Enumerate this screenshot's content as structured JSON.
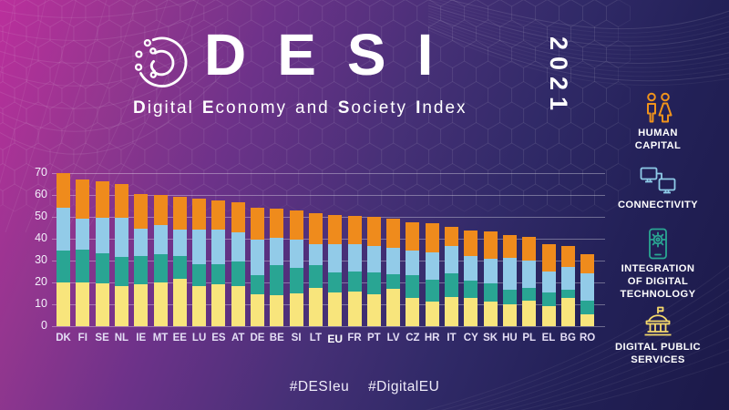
{
  "theme": {
    "bg_gradient_start": "#bb2f9c",
    "bg_gradient_end": "#1b1948",
    "gridline_color": "rgba(255,255,255,0.34)",
    "text_color": "#ffffff"
  },
  "header": {
    "title": "DESI",
    "year": "2021",
    "subtitle_parts": {
      "d1": "D",
      "d2": "igital",
      "e1": "E",
      "e2": "conomy",
      "and": "and",
      "s1": "S",
      "s2": "ociety",
      "i1": "I",
      "i2": "ndex"
    }
  },
  "sidebar": {
    "items": [
      {
        "icon": "people-icon",
        "color": "#f0931b",
        "line1": "HUMAN",
        "line2": "CAPITAL"
      },
      {
        "icon": "monitors-icon",
        "color": "#8ecbe8",
        "line1": "CONNECTIVITY"
      },
      {
        "icon": "phone-gear-icon",
        "color": "#2aa793",
        "line1": "INTEGRATION",
        "line2": "OF DIGITAL",
        "line3": "TECHNOLOGY"
      },
      {
        "icon": "government-building-icon",
        "color": "#f5d96b",
        "line1": "DIGITAL PUBLIC",
        "line2": "SERVICES"
      }
    ]
  },
  "footer": {
    "hashtag1": "#DESIeu",
    "hashtag2": "#DigitalEU"
  },
  "chart_data": {
    "type": "bar",
    "stacked": true,
    "title": "",
    "xlabel": "",
    "ylabel": "",
    "ylim": [
      0,
      70
    ],
    "yticks": [
      0,
      10,
      20,
      30,
      40,
      50,
      60,
      70
    ],
    "grid": "horizontal",
    "legend_position": "right-sidebar",
    "stack_order": "series listed bottom to top",
    "highlight_category": "EU",
    "categories": [
      "DK",
      "FI",
      "SE",
      "NL",
      "IE",
      "MT",
      "EE",
      "LU",
      "ES",
      "AT",
      "DE",
      "BE",
      "SI",
      "LT",
      "EU",
      "FR",
      "PT",
      "LV",
      "CZ",
      "HR",
      "IT",
      "CY",
      "SK",
      "HU",
      "PL",
      "EL",
      "BG",
      "RO"
    ],
    "series": [
      {
        "name": "Digital Public Services",
        "color": "#f8e57c",
        "values": [
          20.0,
          20.0,
          19.5,
          18.5,
          19.0,
          19.8,
          21.5,
          18.3,
          19.0,
          18.3,
          14.5,
          14.3,
          15.0,
          17.3,
          15.3,
          16.0,
          14.6,
          17.2,
          13.0,
          11.2,
          13.5,
          12.8,
          11.1,
          10.2,
          11.8,
          9.0,
          13.0,
          5.3
        ]
      },
      {
        "name": "Integration of Digital Technology",
        "color": "#29a593",
        "values": [
          14.5,
          15.0,
          14.0,
          13.0,
          13.0,
          13.2,
          10.5,
          10.0,
          9.5,
          11.2,
          9.0,
          13.7,
          11.5,
          10.7,
          9.4,
          9.0,
          10.0,
          6.7,
          10.5,
          10.2,
          10.5,
          8.1,
          8.3,
          6.3,
          5.5,
          6.5,
          3.6,
          6.3
        ]
      },
      {
        "name": "Connectivity",
        "color": "#92cbe8",
        "values": [
          19.5,
          14.0,
          16.0,
          18.0,
          12.5,
          13.3,
          12.0,
          15.7,
          15.5,
          13.5,
          16.0,
          12.5,
          13.0,
          9.5,
          12.8,
          12.6,
          11.9,
          12.1,
          10.9,
          12.4,
          12.5,
          11.2,
          11.3,
          14.7,
          12.5,
          9.3,
          10.3,
          12.4
        ]
      },
      {
        "name": "Human Capital",
        "color": "#ef8b1c",
        "values": [
          16.0,
          18.1,
          16.6,
          15.6,
          15.8,
          13.5,
          15.2,
          14.3,
          13.4,
          13.8,
          14.6,
          13.2,
          13.3,
          14.3,
          13.2,
          13.0,
          13.3,
          13.0,
          13.0,
          13.3,
          9.0,
          11.7,
          12.6,
          10.5,
          11.2,
          12.5,
          9.9,
          8.9
        ]
      }
    ],
    "totals": [
      70.0,
      67.1,
      66.1,
      65.1,
      60.3,
      59.8,
      59.2,
      58.3,
      57.4,
      56.8,
      54.1,
      53.7,
      52.8,
      51.8,
      50.7,
      50.6,
      49.8,
      49.0,
      47.4,
      47.1,
      45.5,
      43.8,
      43.3,
      41.7,
      41.0,
      37.3,
      36.8,
      32.9
    ]
  }
}
